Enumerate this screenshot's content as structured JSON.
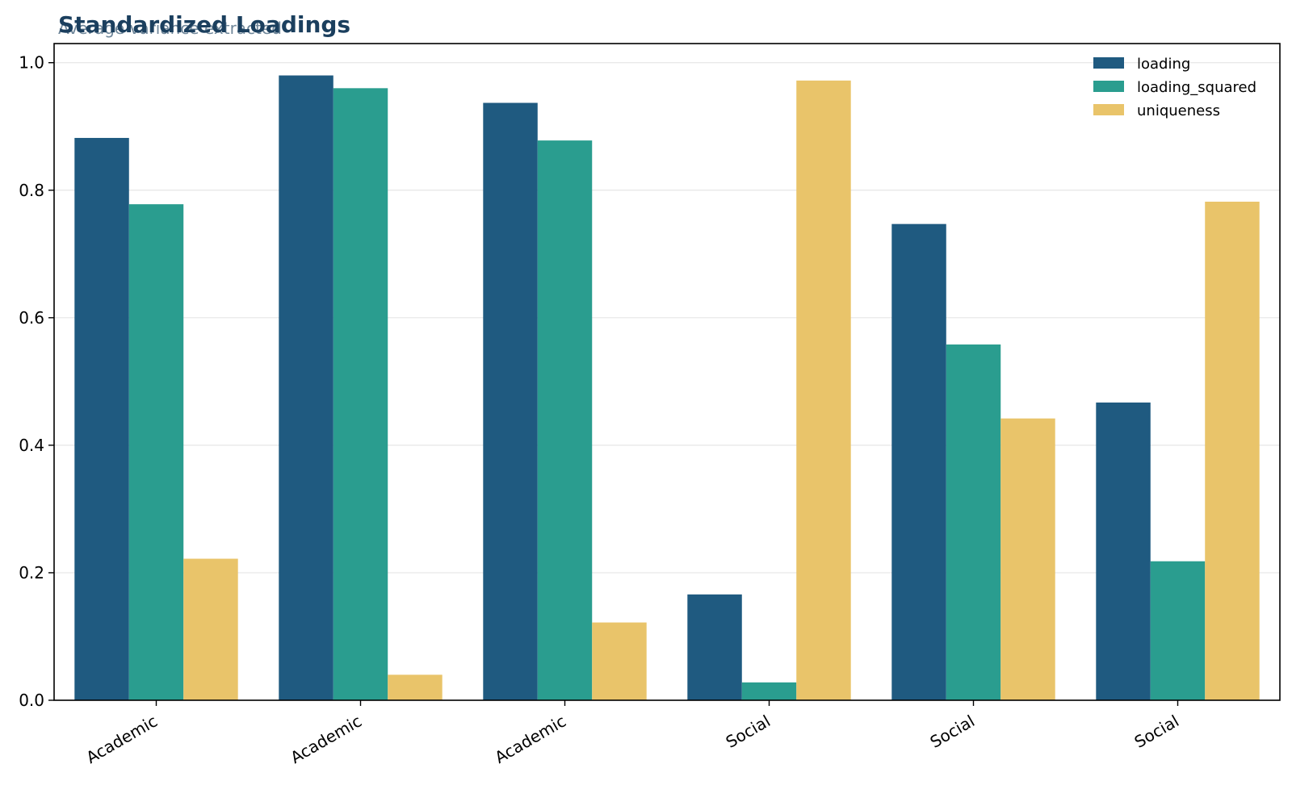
{
  "chart_data": {
    "type": "bar",
    "title": "Standardized Loadings",
    "subtitle": "Average variance extracted",
    "xlabel": "",
    "ylabel": "",
    "categories": [
      "Academic",
      "Academic",
      "Academic",
      "Social",
      "Social",
      "Social"
    ],
    "series": [
      {
        "name": "loading",
        "color": "#1f5a80",
        "values": [
          0.882,
          0.98,
          0.937,
          0.166,
          0.747,
          0.467
        ]
      },
      {
        "name": "loading_squared",
        "color": "#2a9d8f",
        "values": [
          0.778,
          0.96,
          0.878,
          0.028,
          0.558,
          0.218
        ]
      },
      {
        "name": "uniqueness",
        "color": "#e9c46a",
        "values": [
          0.222,
          0.04,
          0.122,
          0.972,
          0.442,
          0.782
        ]
      }
    ],
    "ylim": [
      0,
      1.03
    ],
    "yticks": [
      "0.0",
      "0.2",
      "0.4",
      "0.6",
      "0.8",
      "1.0"
    ],
    "grid": "horizontal",
    "legend_position": "top-right"
  }
}
